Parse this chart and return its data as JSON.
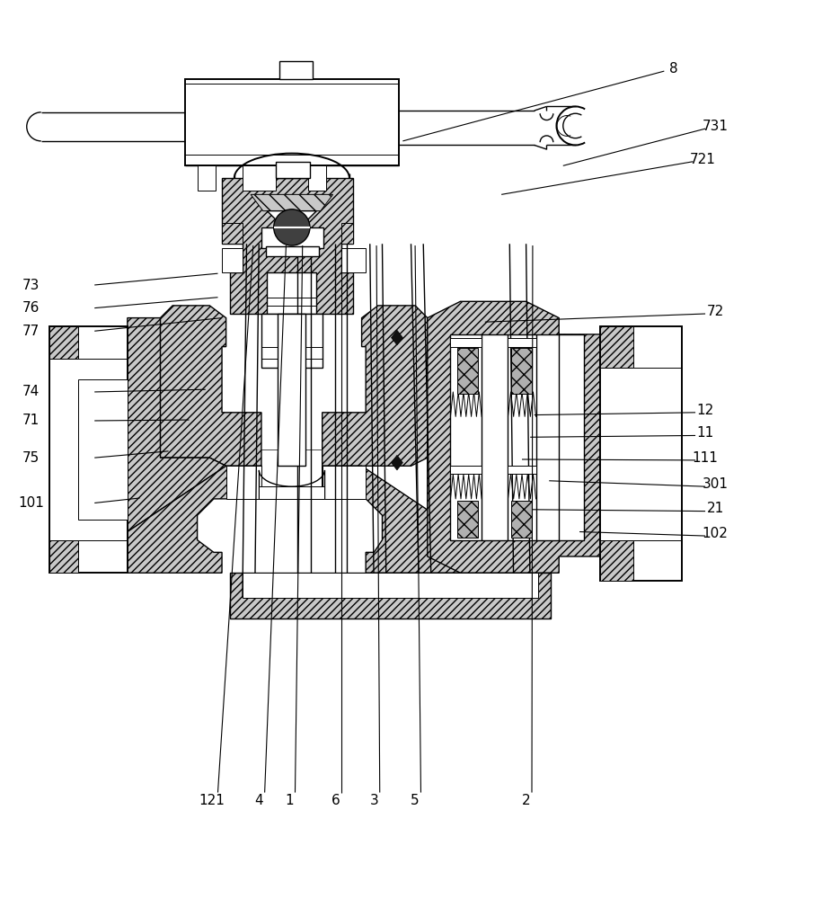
{
  "fig_width": 9.15,
  "fig_height": 10.0,
  "dpi": 100,
  "bg_color": "#ffffff",
  "lc": "#000000",
  "lw_thin": 0.7,
  "lw_med": 1.0,
  "lw_thick": 1.4,
  "hatch_lw": 0.5,
  "label_fs": 11,
  "leaders": {
    "8": {
      "lp": [
        0.82,
        0.963
      ],
      "line": [
        [
          0.808,
          0.96
        ],
        [
          0.49,
          0.875
        ]
      ]
    },
    "731": {
      "lp": [
        0.87,
        0.893
      ],
      "line": [
        [
          0.858,
          0.89
        ],
        [
          0.685,
          0.845
        ]
      ]
    },
    "721": {
      "lp": [
        0.855,
        0.853
      ],
      "line": [
        [
          0.843,
          0.85
        ],
        [
          0.61,
          0.81
        ]
      ]
    },
    "73": {
      "lp": [
        0.038,
        0.7
      ],
      "line": [
        [
          0.115,
          0.7
        ],
        [
          0.265,
          0.714
        ]
      ]
    },
    "76": {
      "lp": [
        0.038,
        0.672
      ],
      "line": [
        [
          0.115,
          0.672
        ],
        [
          0.265,
          0.685
        ]
      ]
    },
    "77": {
      "lp": [
        0.038,
        0.644
      ],
      "line": [
        [
          0.115,
          0.644
        ],
        [
          0.27,
          0.66
        ]
      ]
    },
    "74": {
      "lp": [
        0.038,
        0.57
      ],
      "line": [
        [
          0.115,
          0.57
        ],
        [
          0.25,
          0.573
        ]
      ]
    },
    "71": {
      "lp": [
        0.038,
        0.535
      ],
      "line": [
        [
          0.115,
          0.535
        ],
        [
          0.23,
          0.536
        ]
      ]
    },
    "75": {
      "lp": [
        0.038,
        0.49
      ],
      "line": [
        [
          0.115,
          0.49
        ],
        [
          0.205,
          0.498
        ]
      ]
    },
    "101": {
      "lp": [
        0.038,
        0.435
      ],
      "line": [
        [
          0.115,
          0.435
        ],
        [
          0.17,
          0.441
        ]
      ]
    },
    "72": {
      "lp": [
        0.87,
        0.668
      ],
      "line": [
        [
          0.858,
          0.665
        ],
        [
          0.59,
          0.655
        ]
      ]
    },
    "12": {
      "lp": [
        0.858,
        0.548
      ],
      "line": [
        [
          0.846,
          0.545
        ],
        [
          0.65,
          0.542
        ]
      ]
    },
    "11": {
      "lp": [
        0.858,
        0.52
      ],
      "line": [
        [
          0.846,
          0.517
        ],
        [
          0.645,
          0.515
        ]
      ]
    },
    "111": {
      "lp": [
        0.858,
        0.49
      ],
      "line": [
        [
          0.846,
          0.487
        ],
        [
          0.635,
          0.488
        ]
      ]
    },
    "301": {
      "lp": [
        0.87,
        0.458
      ],
      "line": [
        [
          0.858,
          0.455
        ],
        [
          0.668,
          0.462
        ]
      ]
    },
    "21": {
      "lp": [
        0.87,
        0.428
      ],
      "line": [
        [
          0.858,
          0.425
        ],
        [
          0.648,
          0.427
        ]
      ]
    },
    "102": {
      "lp": [
        0.87,
        0.398
      ],
      "line": [
        [
          0.858,
          0.395
        ],
        [
          0.705,
          0.4
        ]
      ]
    },
    "121": {
      "lp": [
        0.258,
        0.073
      ],
      "line": [
        [
          0.265,
          0.083
        ],
        [
          0.308,
          0.748
        ]
      ]
    },
    "4": {
      "lp": [
        0.315,
        0.073
      ],
      "line": [
        [
          0.322,
          0.083
        ],
        [
          0.348,
          0.748
        ]
      ]
    },
    "1": {
      "lp": [
        0.352,
        0.073
      ],
      "line": [
        [
          0.359,
          0.083
        ],
        [
          0.368,
          0.748
        ]
      ]
    },
    "6": {
      "lp": [
        0.408,
        0.073
      ],
      "line": [
        [
          0.415,
          0.083
        ],
        [
          0.415,
          0.748
        ]
      ]
    },
    "3": {
      "lp": [
        0.455,
        0.073
      ],
      "line": [
        [
          0.462,
          0.083
        ],
        [
          0.458,
          0.748
        ]
      ]
    },
    "5": {
      "lp": [
        0.505,
        0.073
      ],
      "line": [
        [
          0.512,
          0.083
        ],
        [
          0.505,
          0.748
        ]
      ]
    },
    "2": {
      "lp": [
        0.64,
        0.073
      ],
      "line": [
        [
          0.647,
          0.083
        ],
        [
          0.648,
          0.748
        ]
      ]
    }
  }
}
